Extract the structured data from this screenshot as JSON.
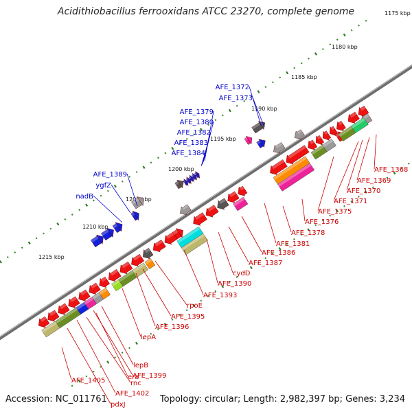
{
  "title": "Acidithiobacillus ferrooxidans ATCC 23270, complete genome",
  "footer": {
    "accession": "Accession: NC_011761",
    "summary": "Topology: circular; Length: 2,982,397 bp; Genes: 3,234"
  },
  "colors": {
    "backbone": "#7a7a7a",
    "tick_major": "#2e7d1e",
    "label_forward": "#0000cc",
    "label_reverse": "#cc0000",
    "gene_red": "#ee1111",
    "gene_blue": "#1122dd",
    "gene_gray": "#999999",
    "gene_darkgray": "#555555",
    "gene_magenta": "#ee2299",
    "cog_olive": "#6b8e23",
    "cog_khaki": "#bdb76b",
    "cog_orange": "#ff8c00",
    "cog_cyan": "#00dddd",
    "cog_green": "#22cc66",
    "cog_lime": "#99dd22"
  },
  "kbp_ticks": [
    {
      "label": "1175 kbp"
    },
    {
      "label": "1180 kbp"
    },
    {
      "label": "1185 kbp"
    },
    {
      "label": "1190 kbp"
    },
    {
      "label": "1195 kbp"
    },
    {
      "label": "1200 kbp"
    },
    {
      "label": "1205 kbp"
    },
    {
      "label": "1210 kbp"
    },
    {
      "label": "1215 kbp"
    }
  ],
  "forward_labels": [
    {
      "label": "AFE_1372"
    },
    {
      "label": "AFE_1373"
    },
    {
      "label": "AFE_1379"
    },
    {
      "label": "AFE_1380"
    },
    {
      "label": "AFE_1382"
    },
    {
      "label": "AFE_1383"
    },
    {
      "label": "AFE_1384"
    },
    {
      "label": "AFE_1389"
    },
    {
      "label": "ygfZ"
    },
    {
      "label": "nadB"
    }
  ],
  "reverse_labels": [
    {
      "label": "AFE_1368"
    },
    {
      "label": "AFE_1369"
    },
    {
      "label": "AFE_1370"
    },
    {
      "label": "AFE_1371"
    },
    {
      "label": "AFE_1375"
    },
    {
      "label": "AFE_1376"
    },
    {
      "label": "AFE_1378"
    },
    {
      "label": "AFE_1381"
    },
    {
      "label": "AFE_1386"
    },
    {
      "label": "AFE_1387"
    },
    {
      "label": "cydD"
    },
    {
      "label": "AFE_1390"
    },
    {
      "label": "AFE_1393"
    },
    {
      "label": "rpoE"
    },
    {
      "label": "AFE_1395"
    },
    {
      "label": "AFE_1396"
    },
    {
      "label": "lepA"
    },
    {
      "label": "lepB"
    },
    {
      "label": "AFE_1399"
    },
    {
      "label": "era"
    },
    {
      "label": "rnc"
    },
    {
      "label": "AFE_1405"
    },
    {
      "label": "AFE_1402"
    },
    {
      "label": "pdxJ"
    }
  ]
}
